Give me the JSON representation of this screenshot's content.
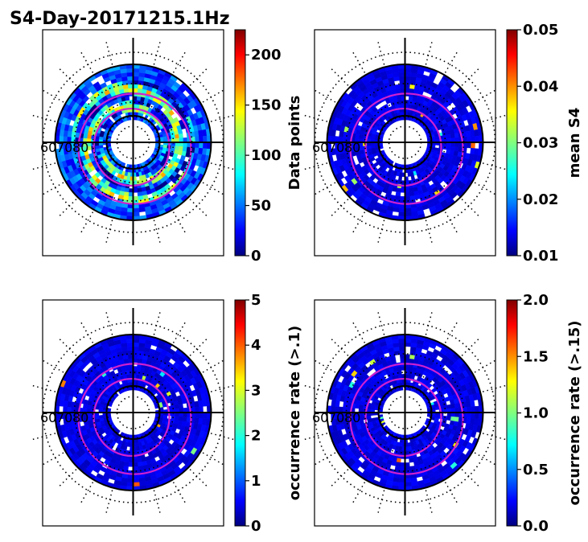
{
  "title": "S4-Day-20171215.1Hz",
  "chart_data": [
    {
      "type": "heatmap",
      "projection": "polar",
      "colormap": "jet",
      "colorbar": {
        "label": "Data points",
        "range": [
          0,
          225
        ],
        "ticks": [
          "0",
          "50",
          "100",
          "150",
          "200"
        ]
      },
      "polar_tick_label": "60",
      "contours": "magenta"
    },
    {
      "type": "heatmap",
      "projection": "polar",
      "colormap": "jet",
      "colorbar": {
        "label": "mean S4",
        "range": [
          0.01,
          0.05
        ],
        "ticks": [
          "0.01",
          "0.02",
          "0.03",
          "0.04",
          "0.05"
        ]
      },
      "polar_tick_label": "60",
      "contours": "magenta"
    },
    {
      "type": "heatmap",
      "projection": "polar",
      "colormap": "jet",
      "colorbar": {
        "label": "occurrence rate (>.1)",
        "range": [
          0,
          5
        ],
        "ticks": [
          "0",
          "1",
          "2",
          "3",
          "4",
          "5"
        ]
      },
      "polar_tick_label": "60",
      "contours": "magenta"
    },
    {
      "type": "heatmap",
      "projection": "polar",
      "colormap": "jet",
      "colorbar": {
        "label": "occurrence rate (>.15)",
        "range": [
          0,
          2
        ],
        "ticks": [
          "0.0",
          "0.5",
          "1.0",
          "1.5",
          "2.0"
        ]
      },
      "polar_tick_label": "60",
      "contours": "magenta"
    }
  ]
}
